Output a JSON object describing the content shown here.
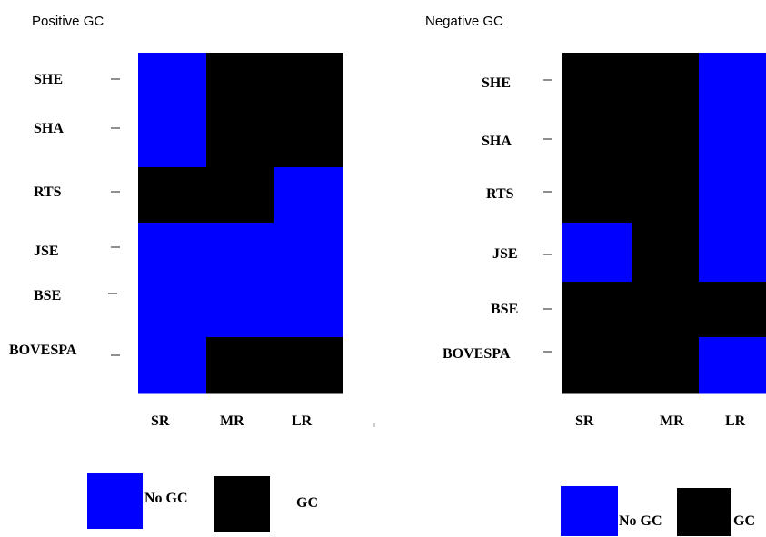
{
  "colors": {
    "no_gc": "#0000ff",
    "gc": "#000000",
    "background": "#ffffff"
  },
  "legend": {
    "no_gc_label": "No GC",
    "gc_label": "GC"
  },
  "chart_data": [
    {
      "type": "heatmap",
      "title": "Positive GC",
      "rows": [
        "SHE",
        "SHA",
        "RTS",
        "JSE",
        "BSE",
        "BOVESPA"
      ],
      "columns": [
        "SR",
        "MR",
        "LR"
      ],
      "values": [
        [
          "No GC",
          "GC",
          "GC"
        ],
        [
          "No GC",
          "GC",
          "GC"
        ],
        [
          "GC",
          "GC",
          "No GC"
        ],
        [
          "No GC",
          "No GC",
          "No GC"
        ],
        [
          "No GC",
          "No GC",
          "No GC"
        ],
        [
          "No GC",
          "GC",
          "GC"
        ]
      ]
    },
    {
      "type": "heatmap",
      "title": "Negative GC",
      "rows": [
        "SHE",
        "SHA",
        "RTS",
        "JSE",
        "BSE",
        "BOVESPA"
      ],
      "columns": [
        "SR",
        "MR",
        "LR"
      ],
      "values": [
        [
          "GC",
          "GC",
          "No GC"
        ],
        [
          "GC",
          "GC",
          "No GC"
        ],
        [
          "GC",
          "GC",
          "No GC"
        ],
        [
          "No GC",
          "GC",
          "No GC"
        ],
        [
          "GC",
          "GC",
          "GC"
        ],
        [
          "GC",
          "GC",
          "No GC"
        ]
      ]
    }
  ]
}
